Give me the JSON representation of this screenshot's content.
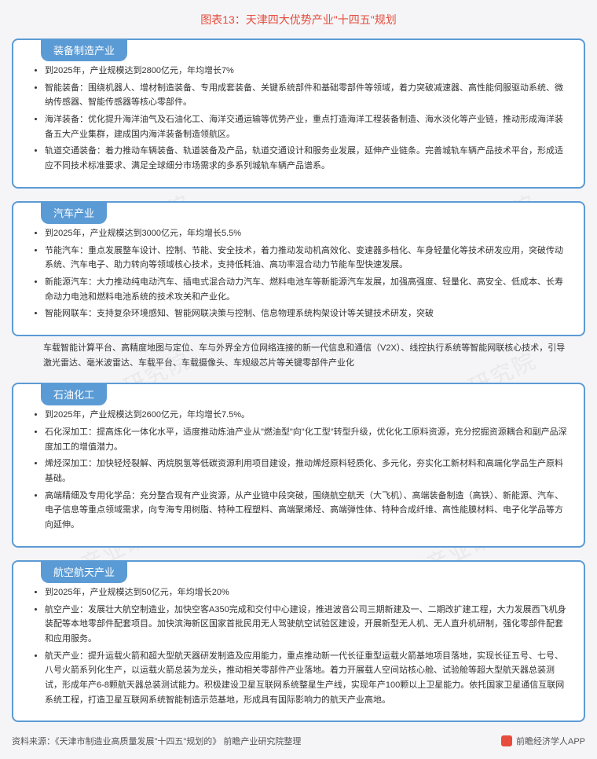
{
  "pageTitle": "图表13：天津四大优势产业\"十四五\"规划",
  "watermarkText": "前瞻产业研究院",
  "cards": [
    {
      "tab": "装备制造产业",
      "bullets": [
        "到2025年，产业规模达到2800亿元，年均增长7%",
        "智能装备：围绕机器人、增材制造装备、专用成套装备、关键系统部件和基础零部件等领域，着力突破减速器、高性能伺服驱动系统、微纳传感器、智能传感器等核心零部件。",
        "海洋装备：优化提升海洋油气及石油化工、海洋交通运输等优势产业，重点打造海洋工程装备制造、海水淡化等产业链，推动形成海洋装备五大产业集群，建成国内海洋装备制造领航区。",
        "轨道交通装备：着力推动车辆装备、轨道装备及产品，轨道交通设计和服务业发展，延伸产业链条。完善城轨车辆产品技术平台，形成适应不同技术标准要求、满足全球细分市场需求的多系列城轨车辆产品谱系。"
      ]
    },
    {
      "tab": "汽车产业",
      "bullets": [
        "到2025年，产业规模达到3000亿元，年均增长5.5%",
        "节能汽车：重点发展整车设计、控制、节能、安全技术，着力推动发动机高效化、变速器多档化、车身轻量化等技术研发应用，突破传动系统、汽车电子、助力转向等领域核心技术，支持低耗油、高功率混合动力节能车型快速发展。",
        "新能源汽车：大力推动纯电动汽车、插电式混合动力汽车、燃料电池车等新能源汽车发展，加强高强度、轻量化、高安全、低成本、长寿命动力电池和燃料电池系统的技术攻关和产业化。",
        "智能网联车：支持复杂环境感知、智能网联决策与控制、信息物理系统构架设计等关键技术研发，突破"
      ]
    },
    {
      "tab": "石油化工",
      "bullets": [
        "到2025年，产业规模达到2600亿元，年均增长7.5%。",
        "石化深加工：提高炼化一体化水平，适度推动炼油产业从\"燃油型\"向\"化工型\"转型升级，优化化工原料资源，充分挖掘资源耦合和副产品深度加工的增值潜力。",
        "烯烃深加工：加快轻烃裂解、丙烷脱氢等低碳资源利用项目建设，推动烯烃原料轻质化、多元化，夯实化工新材料和高端化学品生产原料基础。",
        "高端精细及专用化学品：充分整合现有产业资源，从产业链中段突破，围绕航空航天（大飞机）、高端装备制造（高铁）、新能源、汽车、电子信息等重点领域需求，向专海专用树脂、特种工程塑料、高端聚烯烃、高端弹性体、特种合成纤维、高性能膜材料、电子化学品等方向延伸。"
      ]
    },
    {
      "tab": "航空航天产业",
      "bullets": [
        "到2025年，产业规模达到50亿元，年均增长20%",
        "航空产业：发展壮大航空制造业，加快空客A350完成和交付中心建设，推进波音公司三期新建及一、二期改扩建工程，大力发展西飞机身装配等本地零部件配套项目。加快滨海新区国家首批民用无人驾驶航空试验区建设，开展新型无人机、无人直升机研制，强化零部件配套和应用服务。",
        "航天产业：提升运载火箭和超大型航天器研发制造及应用能力，重点推动新一代长征重型运载火箭基地项目落地，实现长征五号、七号、八号火箭系列化生产，以运载火箭总装为龙头，推动相关零部件产业落地。着力开展载人空间站核心舱、试验舱等超大型航天器总装测试，形成年产6-8颗航天器总装测试能力。积极建设卫星互联网系统整星生产线，实现年产100颗以上卫星能力。依托国家卫星通信互联网系统工程，打造卫星互联网系统智能制造示范基地，形成具有国际影响力的航天产业高地。"
      ]
    }
  ],
  "detachedParagraph": "车载智能计算平台、高精度地图与定位、车与外界全方位网络连接的新一代信息和通信（V2X）、线控执行系统等智能网联核心技术，引导激光雷达、毫米波雷达、车载平台、车载摄像头、车规级芯片等关键零部件产业化",
  "sourceLeft": "资料来源：《天津市制造业高质量发展\"十四五\"规划的》 前瞻产业研究院整理",
  "sourceRight": "前瞻经济学人APP",
  "colors": {
    "titleColor": "#e74c3c",
    "cardBorder": "#5b9bd5",
    "tabBg": "#5b9bd5",
    "bodyBg": "#f5f5f7",
    "textColor": "#333333"
  }
}
